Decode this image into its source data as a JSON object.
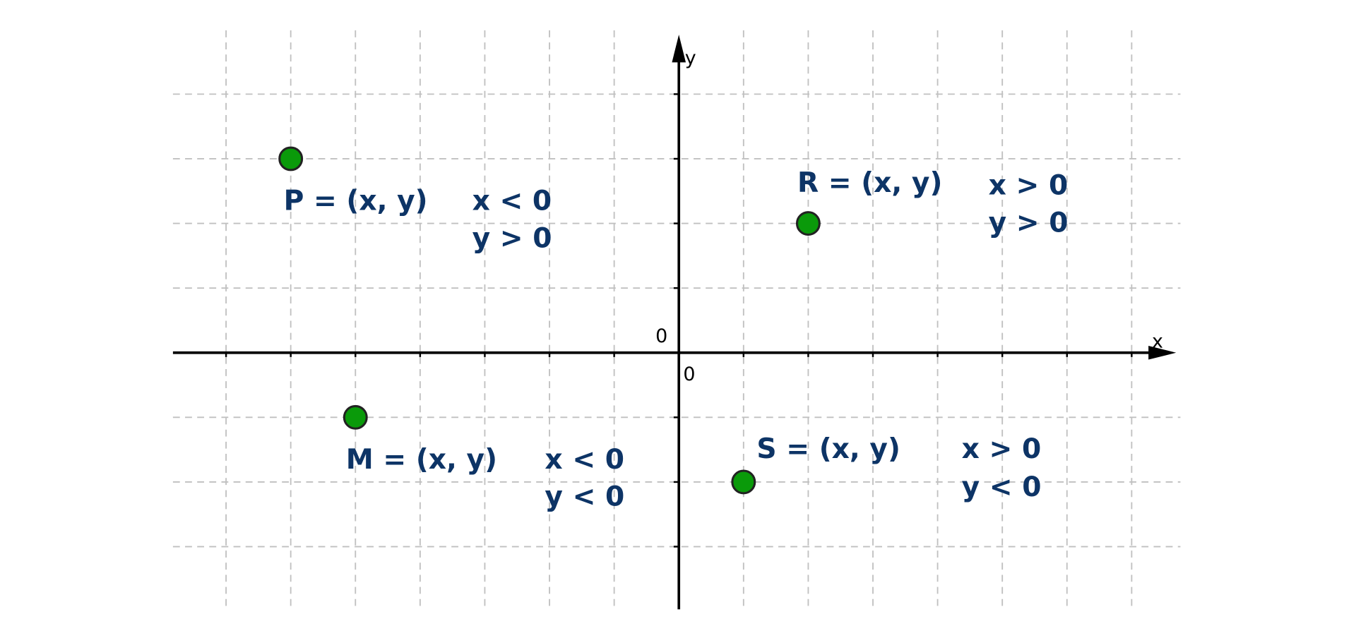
{
  "diagram": {
    "type": "coordinate-plane",
    "axes": {
      "x_label": "x",
      "y_label": "y",
      "origin_x_label": "0",
      "origin_y_label": "0"
    },
    "grid": true,
    "colors": {
      "label": "#0d3466",
      "point_fill": "#0a9a0a",
      "point_stroke": "#222222",
      "grid": "#c0c0c0",
      "axis": "#000000"
    },
    "points": [
      {
        "name": "P",
        "x": -6,
        "y": 3,
        "label": "P = (x, y)",
        "cond_x": "x < 0",
        "cond_y": "y > 0"
      },
      {
        "name": "R",
        "x": 2,
        "y": 2,
        "label": "R = (x, y)",
        "cond_x": "x > 0",
        "cond_y": "y > 0"
      },
      {
        "name": "M",
        "x": -5,
        "y": -1,
        "label": "M = (x, y)",
        "cond_x": "x < 0",
        "cond_y": "y < 0"
      },
      {
        "name": "S",
        "x": 1,
        "y": -2,
        "label": "S = (x, y)",
        "cond_x": "x > 0",
        "cond_y": "y < 0"
      }
    ]
  }
}
